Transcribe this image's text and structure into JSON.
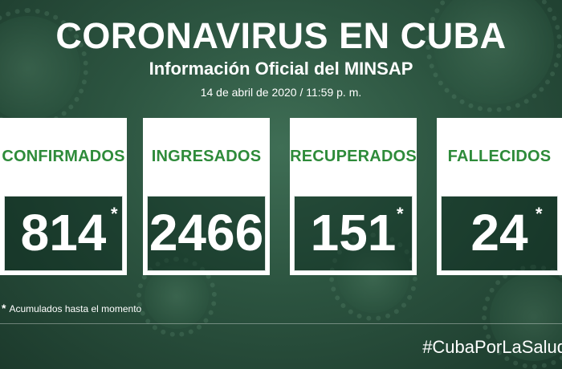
{
  "header": {
    "title": "CORONAVIRUS EN CUBA",
    "subtitle": "Información Oficial del MINSAP",
    "date": "14 de abril de 2020 / 11:59 p. m."
  },
  "cards": [
    {
      "label": "CONFIRMADOS",
      "value": "814",
      "asterisk": "*"
    },
    {
      "label": "INGRESADOS",
      "value": "2466",
      "asterisk": ""
    },
    {
      "label": "RECUPERADOS",
      "value": "151",
      "asterisk": "*"
    },
    {
      "label": "FALLECIDOS",
      "value": "24",
      "asterisk": "*"
    }
  ],
  "footnote": {
    "star": "*",
    "text": "Acumulados hasta el momento"
  },
  "hashtag": "#CubaPorLaSalud",
  "colors": {
    "label_green": "#2e8b3a",
    "background": "#2c5440"
  }
}
